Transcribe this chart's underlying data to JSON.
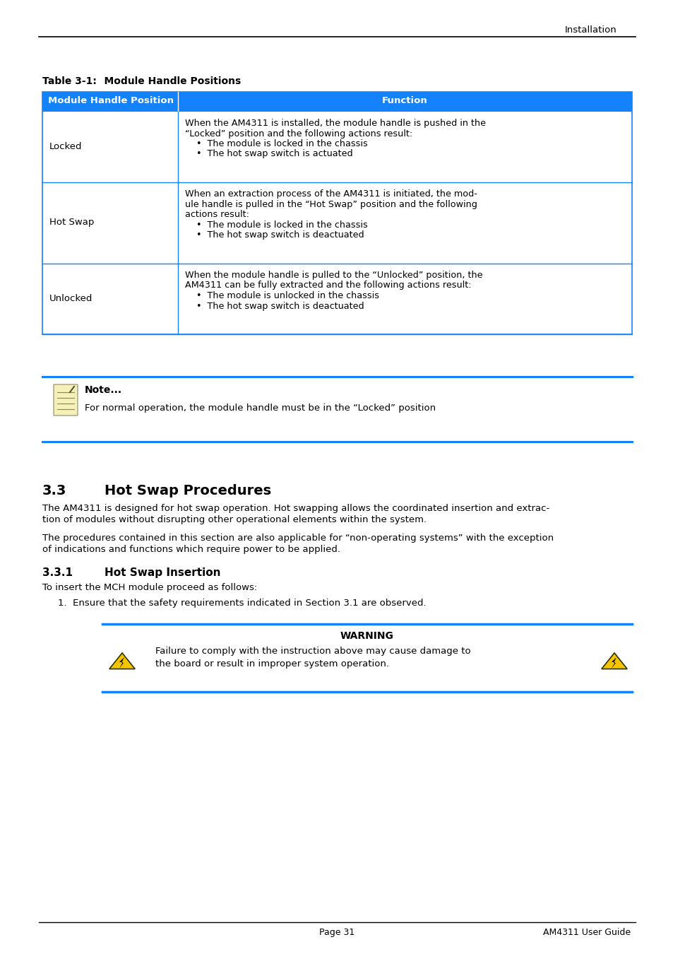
{
  "header_right": "Installation",
  "table_title_bold": "Table 3-1:",
  "table_title_normal": "    Module Handle Positions",
  "table_header": [
    "Module Handle Position",
    "Function"
  ],
  "table_header_bg": "#1482fa",
  "table_header_color": "#ffffff",
  "table_border_color": "#1482fa",
  "table_rows": [
    {
      "position": "Locked",
      "function_lines": [
        "When the AM4311 is installed, the module handle is pushed in the",
        "“Locked” position and the following actions result:",
        "    •  The module is locked in the chassis",
        "    •  The hot swap switch is actuated"
      ]
    },
    {
      "position": "Hot Swap",
      "function_lines": [
        "When an extraction process of the AM4311 is initiated, the mod-",
        "ule handle is pulled in the “Hot Swap” position and the following",
        "actions result:",
        "    •  The module is locked in the chassis",
        "    •  The hot swap switch is deactuated"
      ]
    },
    {
      "position": "Unlocked",
      "function_lines": [
        "When the module handle is pulled to the “Unlocked” position, the",
        "AM4311 can be fully extracted and the following actions result:",
        "    •  The module is unlocked in the chassis",
        "    •  The hot swap switch is deactuated"
      ]
    }
  ],
  "note_title": "Note...",
  "note_text": "For normal operation, the module handle must be in the “Locked” position",
  "note_bar_color": "#1482fa",
  "section_number": "3.3",
  "section_title": "Hot Swap Procedures",
  "section_para1a": "The AM4311 is designed for hot swap operation. Hot swapping allows the coordinated insertion and extrac-",
  "section_para1b": "tion of modules without disrupting other operational elements within the system.",
  "section_para2a": "The procedures contained in this section are also applicable for “non-operating systems” with the exception",
  "section_para2b": "of indications and functions which require power to be applied.",
  "subsection_number": "3.3.1",
  "subsection_title": "Hot Swap Insertion",
  "subsection_intro": "To insert the MCH module proceed as follows:",
  "step1": "1.  Ensure that the safety requirements indicated in Section 3.1 are observed.",
  "warning_title": "WARNING",
  "warning_text1": "Failure to comply with the instruction above may cause damage to",
  "warning_text2": "the board or result in improper system operation.",
  "warning_bar_color": "#1482fa",
  "footer_left": "Page 31",
  "footer_right": "AM4311 User Guide",
  "bg_color": "#ffffff",
  "text_color": "#000000"
}
